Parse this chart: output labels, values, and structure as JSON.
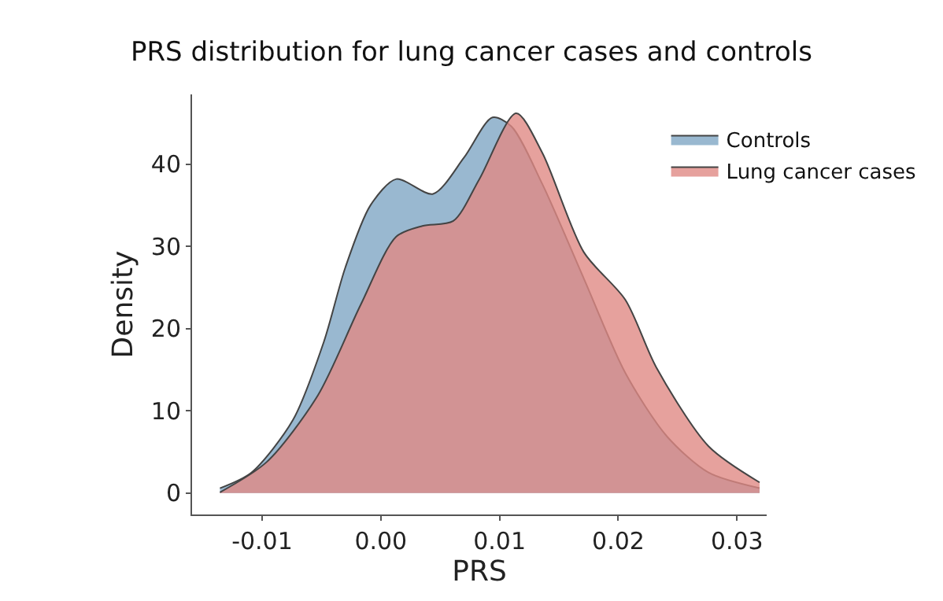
{
  "chart_data": {
    "type": "area",
    "title": "PRS distribution for lung cancer cases and controls",
    "xlabel": "PRS",
    "ylabel": "Density",
    "xlim": [
      -0.0159,
      0.0325
    ],
    "xticks": [
      {
        "value": -0.01,
        "label": "-0.01"
      },
      {
        "value": 0,
        "label": "0.00"
      },
      {
        "value": 0.01,
        "label": "0.01"
      },
      {
        "value": 0.02,
        "label": "0.02"
      },
      {
        "value": 0.03,
        "label": "0.03"
      }
    ],
    "ylim": [
      -2.6,
      48.5
    ],
    "yticks": [
      0,
      10,
      20,
      30,
      40
    ],
    "legend": "top right",
    "series": [
      {
        "name": "Controls",
        "color": "#7fa6c4",
        "x": [
          -0.01355,
          -0.0109,
          -0.0074,
          -0.0048,
          -0.003,
          -0.00088,
          0.0013,
          0.0044,
          0.007,
          0.0094,
          0.011,
          0.0136,
          0.0171,
          0.0206,
          0.0241,
          0.0276,
          0.0319
        ],
        "values": [
          0.6,
          2.5,
          8.9,
          18.4,
          27.4,
          35.0,
          38.2,
          36.4,
          40.8,
          45.7,
          44.6,
          37.6,
          26.1,
          14.6,
          6.9,
          2.5,
          0.6
        ]
      },
      {
        "name": "Lung cancer cases",
        "color": "#e08984",
        "x": [
          -0.01355,
          -0.0096,
          -0.0053,
          -0.0017,
          0.0013,
          0.0035,
          0.0061,
          0.0083,
          0.0114,
          0.0136,
          0.0171,
          0.0206,
          0.0232,
          0.0276,
          0.0319
        ],
        "values": [
          0.1,
          3.8,
          11.9,
          22.9,
          31.2,
          32.5,
          33.1,
          38.2,
          46.2,
          41.4,
          29.3,
          23.5,
          15.3,
          5.7,
          1.3
        ]
      }
    ]
  }
}
